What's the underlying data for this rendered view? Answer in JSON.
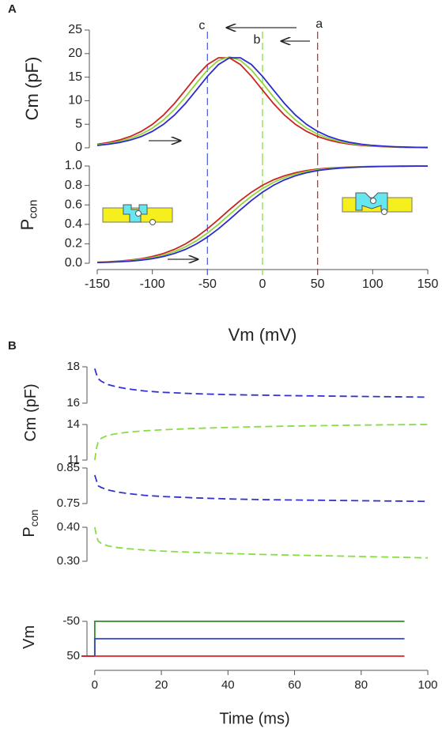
{
  "chart_data": [
    {
      "type": "line",
      "panel": "A",
      "ylabel": "Cm (pF)",
      "x": [
        -150,
        -140,
        -130,
        -120,
        -110,
        -100,
        -90,
        -80,
        -70,
        -60,
        -50,
        -40,
        -30,
        -20,
        -10,
        0,
        10,
        20,
        30,
        40,
        50,
        60,
        70,
        80,
        90,
        100,
        110,
        120,
        130,
        140,
        150
      ],
      "xlim": [
        -150,
        150
      ],
      "ylim": [
        0,
        25
      ],
      "yticks": [
        0,
        5,
        10,
        15,
        20,
        25
      ],
      "series": [
        {
          "color": "#cc2222",
          "values": [
            0.76,
            1.12,
            1.65,
            2.41,
            3.49,
            4.97,
            6.93,
            9.4,
            12.25,
            15.18,
            17.66,
            19.11,
            19.11,
            17.66,
            15.18,
            12.25,
            9.4,
            6.93,
            4.97,
            3.49,
            2.41,
            1.65,
            1.12,
            0.76,
            0.51,
            0.35,
            0.23,
            0.16,
            0.1,
            0.07,
            0.05
          ]
        },
        {
          "color": "#8fd63a",
          "values": [
            0.63,
            0.93,
            1.36,
            2.0,
            2.9,
            4.17,
            5.89,
            8.11,
            10.79,
            13.73,
            16.51,
            18.55,
            19.3,
            18.55,
            16.51,
            13.73,
            10.79,
            8.11,
            5.89,
            4.17,
            2.9,
            2.0,
            1.36,
            0.93,
            0.63,
            0.42,
            0.28,
            0.19,
            0.13,
            0.09,
            0.06
          ]
        },
        {
          "color": "#2a2ad0",
          "values": [
            0.51,
            0.76,
            1.12,
            1.65,
            2.41,
            3.49,
            4.97,
            6.93,
            9.4,
            12.25,
            15.18,
            17.66,
            19.11,
            19.11,
            17.66,
            15.18,
            12.25,
            9.4,
            6.93,
            4.97,
            3.49,
            2.41,
            1.65,
            1.12,
            0.76,
            0.51,
            0.35,
            0.23,
            0.16,
            0.1,
            0.07
          ]
        }
      ],
      "vlines": [
        {
          "x": -50,
          "color": "#5566dd",
          "label": "c"
        },
        {
          "x": 0,
          "color": "#88dd44",
          "label": "b"
        },
        {
          "x": 50,
          "color": "#cc3333",
          "label": "a"
        }
      ]
    },
    {
      "type": "line",
      "ylabel": "P",
      "ylabel_sub": "con",
      "xlabel": "Vm (mV)",
      "x": [
        -150,
        -140,
        -130,
        -120,
        -110,
        -100,
        -90,
        -80,
        -70,
        -60,
        -50,
        -40,
        -30,
        -20,
        -10,
        0,
        10,
        20,
        30,
        40,
        50,
        60,
        70,
        80,
        90,
        100,
        110,
        120,
        130,
        140,
        150
      ],
      "xlim": [
        -150,
        150
      ],
      "xticks": [
        -150,
        -100,
        -50,
        0,
        50,
        100,
        150
      ],
      "ylim": [
        0,
        1
      ],
      "yticks": [
        {
          "value": 0,
          "label": "0.0"
        },
        0.2,
        0.4,
        0.6,
        0.8,
        {
          "value": 1,
          "label": "1.0"
        }
      ],
      "series": [
        {
          "color": "#cc2222",
          "values": [
            0.01,
            0.015,
            0.022,
            0.032,
            0.047,
            0.069,
            0.1,
            0.142,
            0.198,
            0.269,
            0.354,
            0.45,
            0.55,
            0.646,
            0.731,
            0.802,
            0.858,
            0.9,
            0.931,
            0.953,
            0.968,
            0.978,
            0.985,
            0.99,
            0.993,
            0.996,
            0.997,
            0.998,
            0.999,
            0.999,
            0.999
          ]
        },
        {
          "color": "#8fd63a",
          "values": [
            0.008,
            0.012,
            0.018,
            0.027,
            0.039,
            0.057,
            0.083,
            0.119,
            0.168,
            0.231,
            0.31,
            0.401,
            0.5,
            0.599,
            0.69,
            0.769,
            0.832,
            0.881,
            0.917,
            0.943,
            0.961,
            0.973,
            0.982,
            0.988,
            0.992,
            0.995,
            0.996,
            0.998,
            0.998,
            0.999,
            0.999
          ]
        },
        {
          "color": "#2a2ad0",
          "values": [
            0.007,
            0.01,
            0.015,
            0.022,
            0.032,
            0.047,
            0.069,
            0.1,
            0.142,
            0.198,
            0.269,
            0.354,
            0.45,
            0.55,
            0.646,
            0.731,
            0.802,
            0.858,
            0.9,
            0.931,
            0.953,
            0.968,
            0.978,
            0.985,
            0.99,
            0.993,
            0.996,
            0.997,
            0.998,
            0.999,
            0.999
          ]
        }
      ],
      "vlines": [
        {
          "x": -50,
          "color": "#5566dd"
        },
        {
          "x": 0,
          "color": "#88dd44"
        },
        {
          "x": 50,
          "color": "#cc3333"
        }
      ]
    },
    {
      "type": "line",
      "panel": "B",
      "ylabel": "Cm (pF)",
      "dashed": true,
      "x": [
        0,
        0.5,
        1,
        2,
        4,
        7,
        10,
        15,
        20,
        30,
        40,
        50,
        60,
        70,
        80,
        90,
        100
      ],
      "xlim": [
        -4,
        100
      ],
      "ylim": [
        16,
        18
      ],
      "yticks": [
        16,
        18
      ],
      "series": [
        {
          "color": "#3333cc",
          "values": [
            17.9,
            17.6,
            17.35,
            17.2,
            17.02,
            16.88,
            16.78,
            16.67,
            16.6,
            16.52,
            16.47,
            16.44,
            16.41,
            16.39,
            16.37,
            16.35,
            16.33
          ]
        }
      ]
    },
    {
      "type": "line",
      "dashed": true,
      "x": [
        0,
        0.5,
        1,
        2,
        4,
        7,
        10,
        15,
        20,
        30,
        40,
        50,
        60,
        70,
        80,
        90,
        100
      ],
      "xlim": [
        -4,
        100
      ],
      "ylim": [
        11,
        14
      ],
      "yticks": [
        11,
        14
      ],
      "series": [
        {
          "color": "#88dd44",
          "values": [
            11.0,
            12.0,
            12.5,
            12.85,
            13.1,
            13.25,
            13.35,
            13.47,
            13.55,
            13.67,
            13.75,
            13.82,
            13.87,
            13.91,
            13.95,
            13.98,
            14.0
          ]
        }
      ]
    },
    {
      "type": "line",
      "ylabel": "P",
      "ylabel_sub": "con",
      "dashed": true,
      "x": [
        0,
        0.5,
        1,
        2,
        4,
        7,
        10,
        15,
        20,
        30,
        40,
        50,
        60,
        70,
        80,
        90,
        100
      ],
      "xlim": [
        -4,
        100
      ],
      "ylim": [
        0.75,
        0.85
      ],
      "yticks": [
        0.75,
        0.85
      ],
      "series": [
        {
          "color": "#3333cc",
          "values": [
            0.83,
            0.815,
            0.8,
            0.795,
            0.788,
            0.782,
            0.778,
            0.773,
            0.77,
            0.766,
            0.763,
            0.761,
            0.76,
            0.759,
            0.758,
            0.757,
            0.756
          ]
        }
      ]
    },
    {
      "type": "line",
      "dashed": true,
      "x": [
        0,
        0.5,
        1,
        2,
        4,
        7,
        10,
        15,
        20,
        30,
        40,
        50,
        60,
        70,
        80,
        90,
        100
      ],
      "xlim": [
        -4,
        100
      ],
      "ylim": [
        0.3,
        0.4
      ],
      "yticks": [
        {
          "value": 0.3,
          "label": "0.30"
        },
        {
          "value": 0.4,
          "label": "0.40"
        }
      ],
      "series": [
        {
          "color": "#88dd44",
          "values": [
            0.4,
            0.375,
            0.36,
            0.352,
            0.345,
            0.34,
            0.337,
            0.333,
            0.33,
            0.326,
            0.323,
            0.32,
            0.318,
            0.316,
            0.314,
            0.312,
            0.31
          ]
        }
      ]
    },
    {
      "type": "line",
      "ylabel": "Vm",
      "xlabel": "Time (ms)",
      "x": [
        -4,
        0,
        0,
        93
      ],
      "xlim": [
        -4,
        100
      ],
      "xticks": [
        0,
        20,
        40,
        60,
        80,
        100
      ],
      "ylim": [
        50,
        -50
      ],
      "yticks": [
        -50,
        50
      ],
      "series": [
        {
          "color": "#2e8b2e",
          "values": [
            50,
            50,
            -50,
            -50
          ]
        },
        {
          "color": "#3344cc",
          "values": [
            50,
            50,
            0,
            0
          ]
        },
        {
          "color": "#dd2222",
          "values": [
            50,
            50,
            50,
            50
          ]
        }
      ]
    }
  ]
}
